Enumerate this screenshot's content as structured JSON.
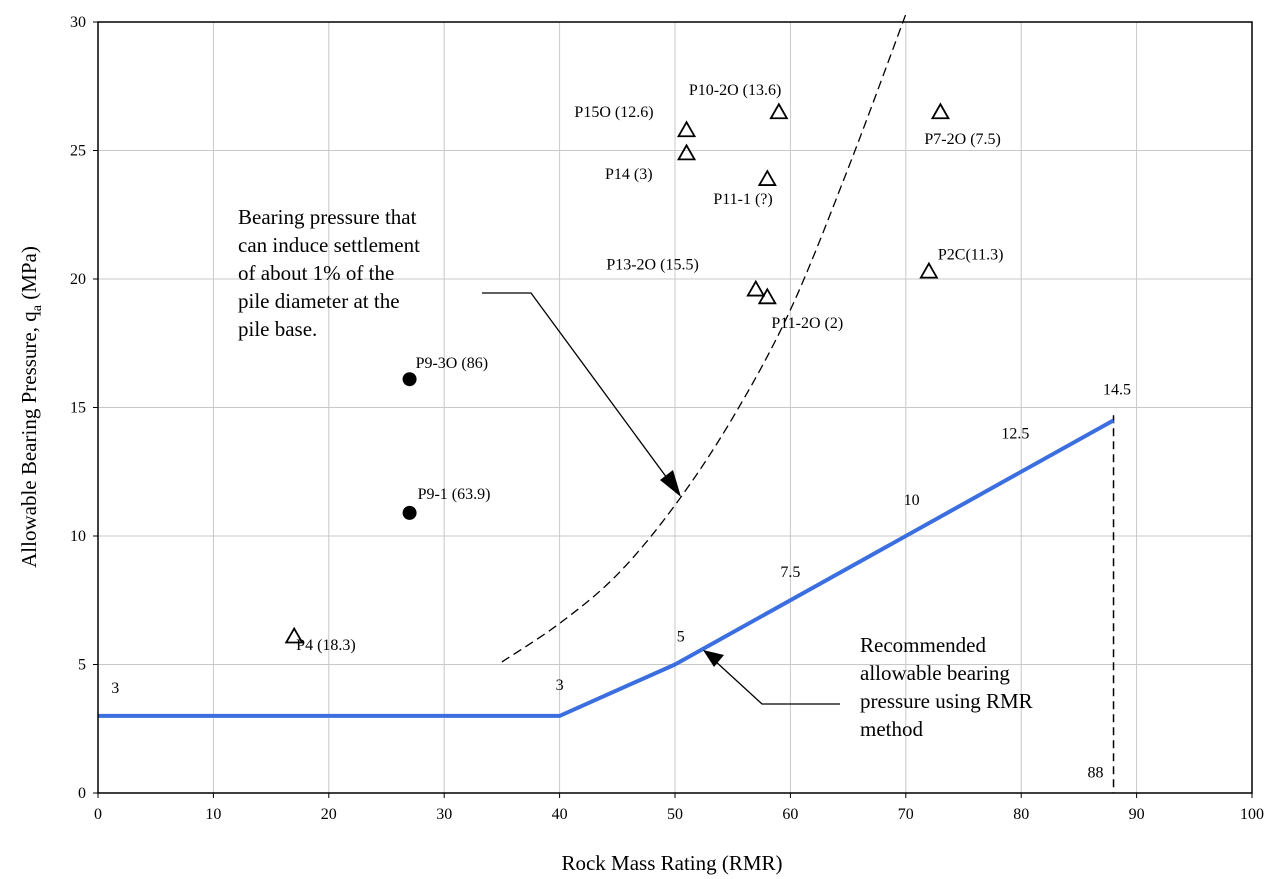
{
  "chart_data": {
    "type": "scatter",
    "title": "",
    "xlabel": "Rock Mass Rating (RMR)",
    "ylabel_main": "Allowable Bearing Pressure, q",
    "ylabel_sub": "a",
    "ylabel_unit": " (MPa)",
    "xlim": [
      0,
      100
    ],
    "ylim": [
      0,
      30
    ],
    "x_ticks": [
      0,
      10,
      20,
      30,
      40,
      50,
      60,
      70,
      80,
      90,
      100
    ],
    "y_ticks": [
      0,
      5,
      10,
      15,
      20,
      25,
      30
    ],
    "grid": true,
    "series": [
      {
        "marker": "open-triangle",
        "points": [
          {
            "x": 17,
            "y": 6.1,
            "label": "P4 (18.3)"
          },
          {
            "x": 51,
            "y": 25.8,
            "label": "P15O (12.6)"
          },
          {
            "x": 51,
            "y": 24.9,
            "label": "P14 (3)"
          },
          {
            "x": 59,
            "y": 26.5,
            "label": "P10-2O (13.6)"
          },
          {
            "x": 58,
            "y": 23.9,
            "label": "P11-1 (?)"
          },
          {
            "x": 57,
            "y": 19.6,
            "label": "P13-2O (15.5)"
          },
          {
            "x": 58,
            "y": 19.3,
            "label": "P11-2O (2)"
          },
          {
            "x": 73,
            "y": 26.5,
            "label": "P7-2O (7.5)"
          },
          {
            "x": 72,
            "y": 20.3,
            "label": "P2C(11.3)"
          }
        ]
      },
      {
        "marker": "filled-circle",
        "points": [
          {
            "x": 27,
            "y": 16.1,
            "label": "P9-3O (86)"
          },
          {
            "x": 27,
            "y": 10.9,
            "label": "P9-1 (63.9)"
          }
        ]
      }
    ],
    "recommended_line": {
      "color": "#3b6fe0",
      "points": [
        [
          0,
          3
        ],
        [
          40,
          3
        ],
        [
          50,
          5
        ],
        [
          88,
          14.5
        ]
      ],
      "value_labels": [
        "3",
        "3",
        "5",
        "7.5",
        "10",
        "12.5",
        "14.5"
      ]
    },
    "settlement_curve": {
      "style": "dashed",
      "points": [
        [
          35,
          5.1
        ],
        [
          40,
          6.6
        ],
        [
          45,
          8.5
        ],
        [
          50,
          11.2
        ],
        [
          55,
          14.6
        ],
        [
          60,
          18.8
        ],
        [
          65,
          24.3
        ],
        [
          70,
          30.3
        ]
      ]
    },
    "vertical_marker": {
      "x": 88,
      "label": "88"
    },
    "annotations": {
      "settlement_text": [
        "Bearing pressure that",
        "can induce settlement",
        "of about 1% of the",
        "pile diameter at the",
        "pile base."
      ],
      "recommended_text": [
        "Recommended",
        "allowable bearing",
        "pressure using RMR",
        "method"
      ]
    }
  }
}
